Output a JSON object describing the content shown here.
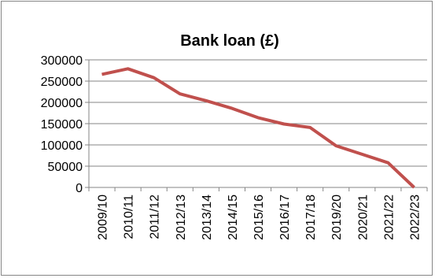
{
  "chart_data": {
    "type": "line",
    "title": "Bank loan (£)",
    "xlabel": "",
    "ylabel": "",
    "categories": [
      "2009/10",
      "2010/11",
      "2011/12",
      "2012/13",
      "2013/14",
      "2014/15",
      "2015/16",
      "2016/17",
      "2017/18",
      "2019/20",
      "2020/21",
      "2021/22",
      "2022/23"
    ],
    "series": [
      {
        "values": [
          266000,
          279000,
          258000,
          220000,
          204000,
          186000,
          164000,
          149000,
          141000,
          98000,
          78000,
          58000,
          0
        ]
      }
    ],
    "ylim": [
      0,
      300000
    ],
    "yticks": [
      "0",
      "50000",
      "100000",
      "150000",
      "200000",
      "250000",
      "300000"
    ],
    "grid": true,
    "legend": "none",
    "line_color": "#C0504D",
    "grid_color": "#868686"
  }
}
